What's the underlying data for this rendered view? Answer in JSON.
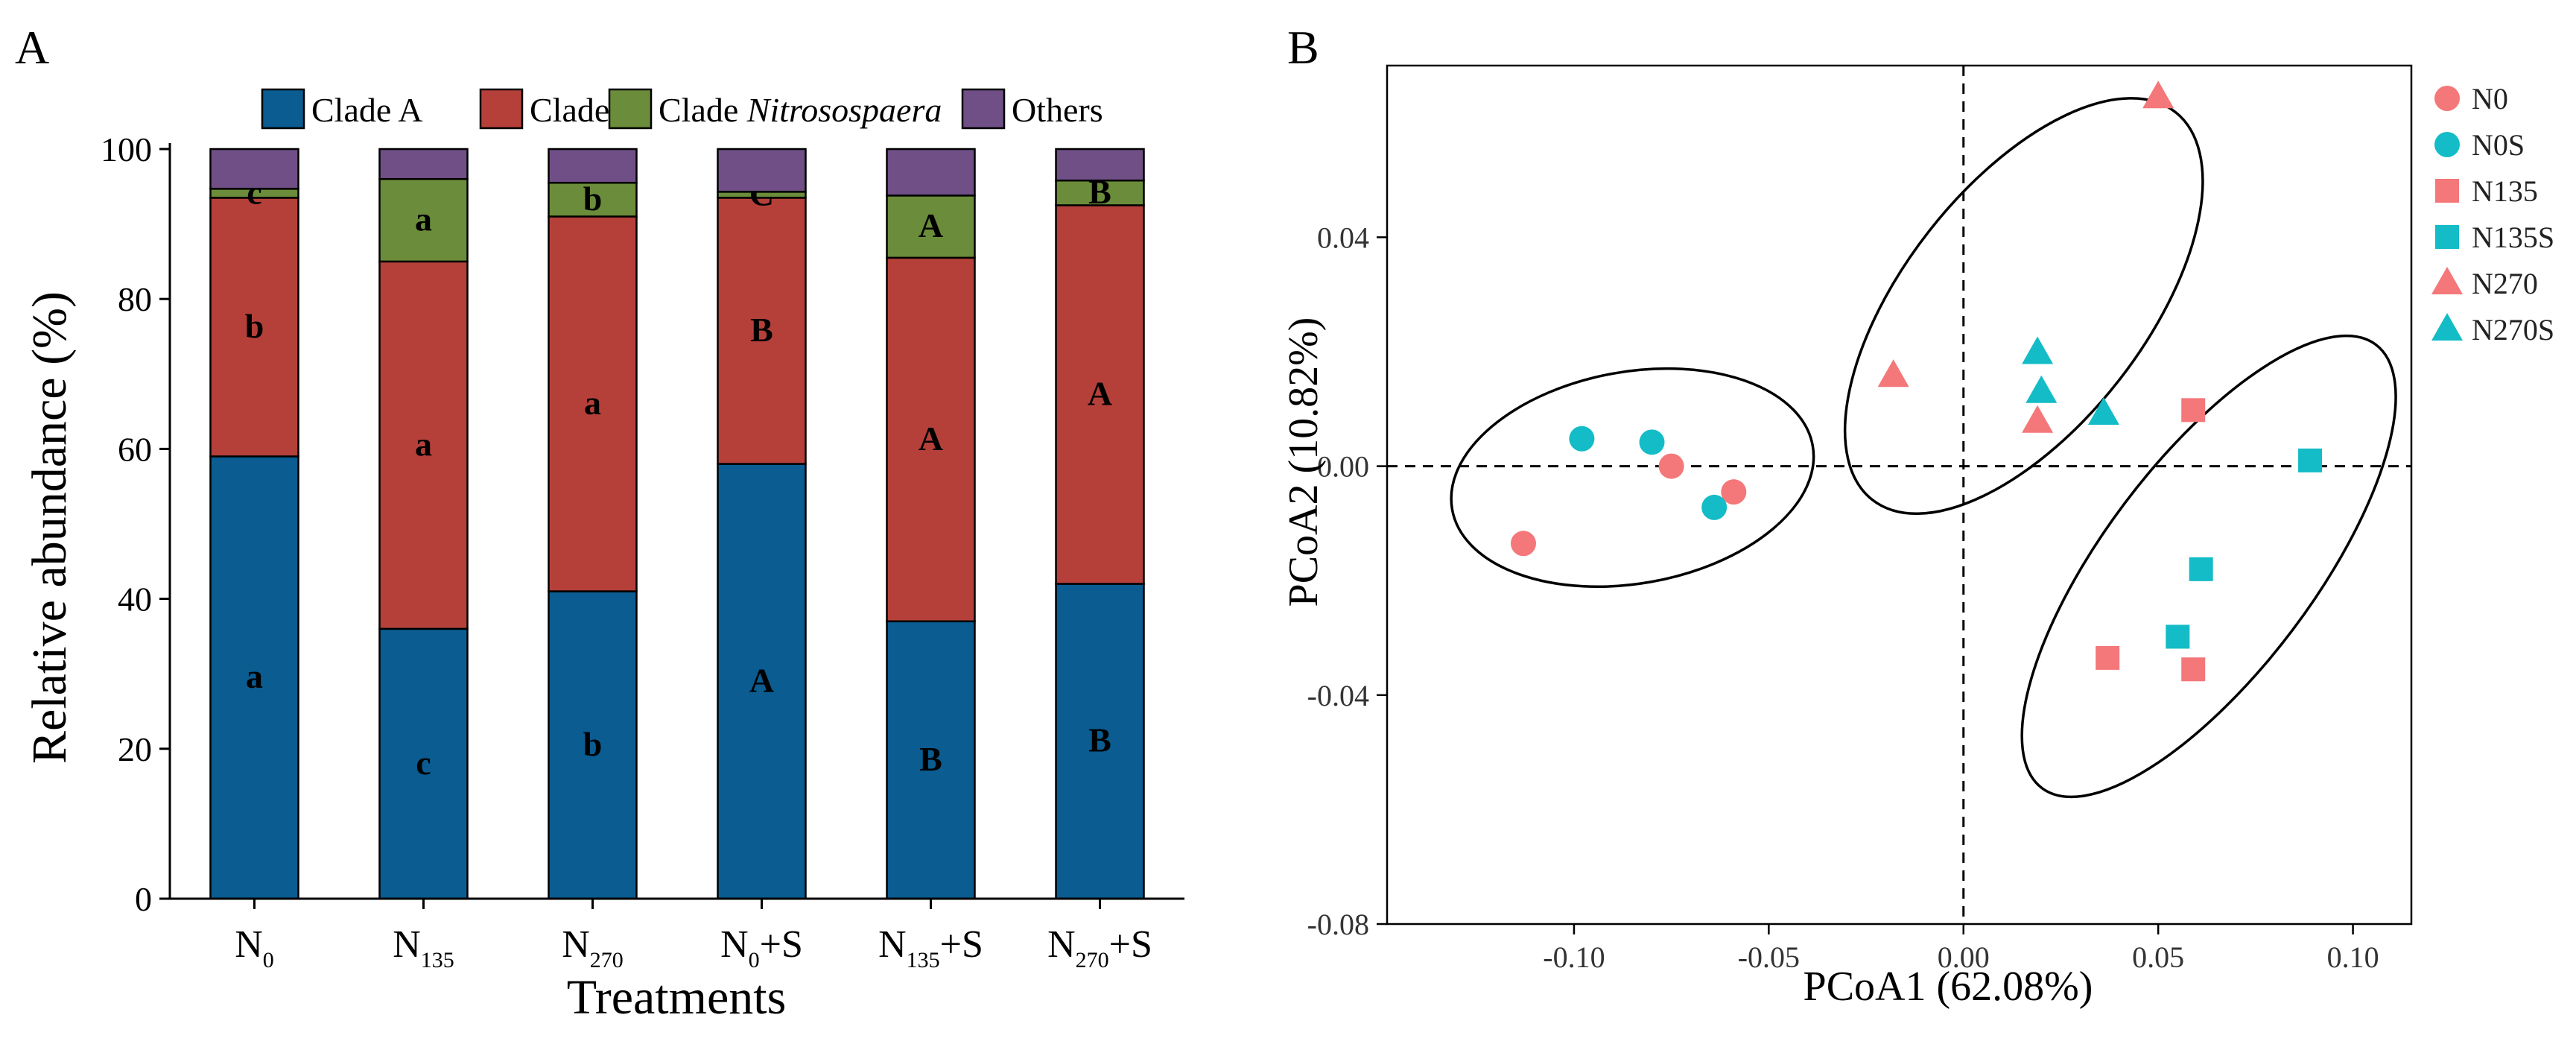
{
  "panel_labels": {
    "a": "A",
    "b": "B"
  },
  "colors": {
    "clade_a": "#0a5c91",
    "clade_b": "#b5403a",
    "clade_nitrososphaera": "#6b8c3a",
    "others": "#6f4f86",
    "n_group": "#f4777a",
    "s_group": "#13bcc6"
  },
  "chart_data": [
    {
      "type": "bar",
      "stacked": true,
      "title": "",
      "xlabel": "Treatments",
      "ylabel": "Relative abundance (%)",
      "ylim": [
        0,
        100
      ],
      "yticks": [
        "0",
        "20",
        "40",
        "60",
        "80",
        "100"
      ],
      "categories": [
        {
          "base": "N",
          "sub": "0",
          "suffix": ""
        },
        {
          "base": "N",
          "sub": "135",
          "suffix": ""
        },
        {
          "base": "N",
          "sub": "270",
          "suffix": ""
        },
        {
          "base": "N",
          "sub": "0",
          "suffix": "+S"
        },
        {
          "base": "N",
          "sub": "135",
          "suffix": "+S"
        },
        {
          "base": "N",
          "sub": "270",
          "suffix": "+S"
        }
      ],
      "legend": [
        {
          "key": "clade_a",
          "prefix": "Clade A",
          "italic": ""
        },
        {
          "key": "clade_b",
          "prefix": "Clade B",
          "italic": ""
        },
        {
          "key": "clade_nitrososphaera",
          "prefix": "Clade ",
          "italic": "Nitrosospaera"
        },
        {
          "key": "others",
          "prefix": "Others",
          "italic": ""
        }
      ],
      "series": [
        {
          "name": "Clade A",
          "key": "clade_a",
          "values": [
            59,
            36,
            41,
            58,
            37,
            42
          ],
          "labels": [
            "a",
            "c",
            "b",
            "A",
            "B",
            "B"
          ]
        },
        {
          "name": "Clade B",
          "key": "clade_b",
          "values": [
            34.5,
            49,
            50,
            35.5,
            48.5,
            50.5
          ],
          "labels": [
            "b",
            "a",
            "a",
            "B",
            "A",
            "A"
          ]
        },
        {
          "name": "Clade Nitrosospaera",
          "key": "clade_nitrososphaera",
          "values": [
            1.2,
            11,
            4.5,
            0.8,
            8.3,
            3.3
          ],
          "labels": [
            "c",
            "a",
            "b",
            "C",
            "A",
            "B"
          ]
        },
        {
          "name": "Others",
          "key": "others",
          "values": [
            5.3,
            4,
            4.5,
            5.7,
            6.2,
            4.2
          ],
          "labels": [
            "",
            "",
            "",
            "",
            "",
            ""
          ]
        }
      ]
    },
    {
      "type": "scatter",
      "title": "",
      "xlabel": "PCoA1 (62.08%)",
      "ylabel": "PCoA2  (10.82%)",
      "xlim": [
        -0.148,
        0.115
      ],
      "ylim": [
        -0.08,
        0.07
      ],
      "xticks": [
        "-0.10",
        "-0.05",
        "0.00",
        "0.05",
        "0.10"
      ],
      "yticks": [
        "-0.08",
        "-0.04",
        "0.00",
        "0.04"
      ],
      "legend_position": "right",
      "legend": [
        {
          "name": "N0",
          "shape": "circle",
          "color": "n_group"
        },
        {
          "name": "N0S",
          "shape": "circle",
          "color": "s_group"
        },
        {
          "name": "N135",
          "shape": "square",
          "color": "n_group"
        },
        {
          "name": "N135S",
          "shape": "square",
          "color": "s_group"
        },
        {
          "name": "N270",
          "shape": "triangle",
          "color": "n_group"
        },
        {
          "name": "N270S",
          "shape": "triangle",
          "color": "s_group"
        }
      ],
      "series": [
        {
          "name": "N0",
          "points": [
            [
              -0.113,
              -0.0135
            ],
            [
              -0.075,
              0.0
            ],
            [
              -0.059,
              -0.0045
            ]
          ]
        },
        {
          "name": "N0S",
          "points": [
            [
              -0.098,
              0.0048
            ],
            [
              -0.08,
              0.0042
            ],
            [
              -0.064,
              -0.0072
            ]
          ]
        },
        {
          "name": "N135",
          "points": [
            [
              0.059,
              0.0098
            ],
            [
              0.037,
              -0.0335
            ],
            [
              0.059,
              -0.0355
            ]
          ]
        },
        {
          "name": "N135S",
          "points": [
            [
              0.089,
              0.001
            ],
            [
              0.061,
              -0.018
            ],
            [
              0.055,
              -0.0298
            ]
          ]
        },
        {
          "name": "N270",
          "points": [
            [
              -0.018,
              0.0158
            ],
            [
              0.019,
              0.0078
            ],
            [
              0.05,
              0.0645
            ]
          ]
        },
        {
          "name": "N270S",
          "points": [
            [
              0.019,
              0.0198
            ],
            [
              0.02,
              0.013
            ],
            [
              0.036,
              0.0092
            ]
          ]
        }
      ],
      "ellipses": [
        {
          "group": "N0/N0S",
          "center": [
            -0.085,
            -0.002
          ],
          "radius_x": 0.047,
          "radius_y": 0.0185,
          "angle_deg": -10
        },
        {
          "group": "N270/N270S",
          "center": [
            0.0155,
            0.028
          ],
          "radius_x": 0.031,
          "radius_y": 0.043,
          "angle_deg": 38
        },
        {
          "group": "N135/N135S",
          "center": [
            0.063,
            -0.0175
          ],
          "radius_x": 0.027,
          "radius_y": 0.0485,
          "angle_deg": 37
        }
      ],
      "reference_lines": {
        "x": 0,
        "y": 0,
        "style": "dashed"
      }
    }
  ]
}
